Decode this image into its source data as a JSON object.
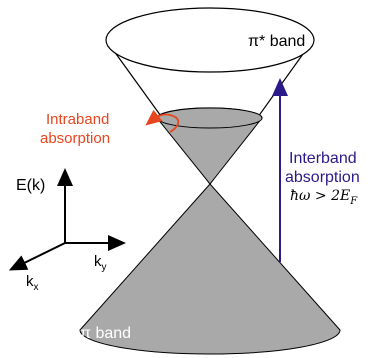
{
  "labels": {
    "pi_star_band": "π* band",
    "pi_band": "π band",
    "intraband_line1": "Intraband",
    "intraband_line2": "absorption",
    "interband_line1": "Interband",
    "interband_line2": "absorption",
    "interband_condition": "ħω > 2E",
    "interband_condition_sub": "F",
    "energy_axis": "E(k)",
    "ky_axis": "k",
    "ky_sub": "y",
    "kx_axis": "k",
    "kx_sub": "x"
  },
  "colors": {
    "filled_cone": "#a9a9a9",
    "outline": "#000000",
    "intraband": "#e8461e",
    "interband": "#2b1a8a",
    "background": "#ffffff"
  }
}
